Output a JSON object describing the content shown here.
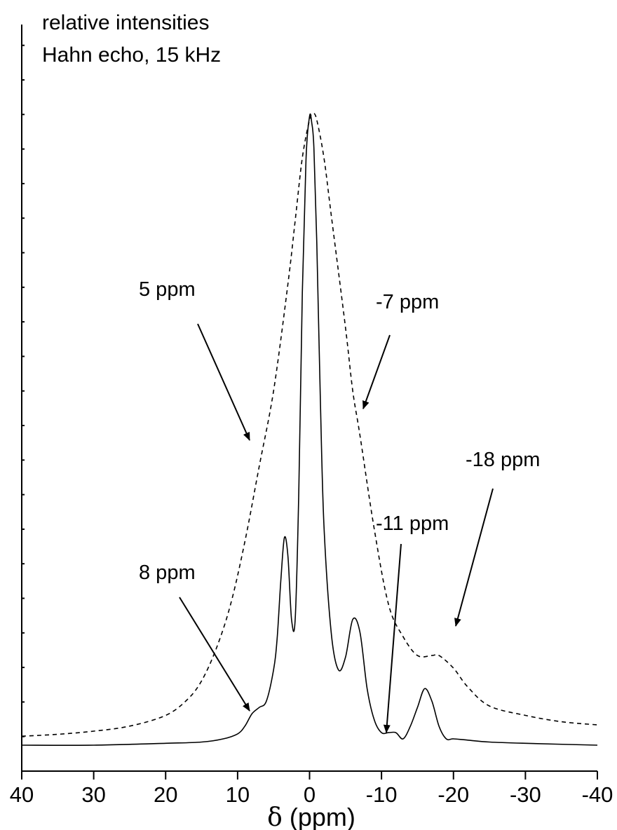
{
  "chart_data": {
    "type": "line",
    "title": "",
    "ylabel_lines": [
      "relative intensities",
      "Hahn echo, 15 kHz"
    ],
    "xlabel_symbol": "δ",
    "xlabel_unit": " (ppm)",
    "xlim": [
      40,
      -40
    ],
    "ylim": [
      0,
      1
    ],
    "x_reversed": true,
    "grid": false,
    "x_ticks": [
      40,
      30,
      20,
      10,
      0,
      -10,
      -20,
      -30,
      -40
    ],
    "x_tick_labels": [
      "40",
      "30",
      "20",
      "10",
      "0",
      "-10",
      "-20",
      "-30",
      "-40"
    ],
    "y_tick_labels": [],
    "series": [
      {
        "style": "dashed",
        "x": [
          40,
          35,
          30,
          25,
          20,
          17,
          15,
          13,
          11,
          9,
          7,
          5,
          3,
          2,
          1,
          0,
          -0.5,
          -1,
          -2,
          -3,
          -5,
          -6,
          -7,
          -9,
          -11,
          -13,
          -15,
          -17,
          -18,
          -20,
          -22,
          -25,
          -30,
          -35,
          -40
        ],
        "y": [
          0.012,
          0.015,
          0.02,
          0.028,
          0.045,
          0.07,
          0.1,
          0.15,
          0.22,
          0.32,
          0.44,
          0.56,
          0.73,
          0.83,
          0.93,
          0.99,
          1.0,
          0.99,
          0.93,
          0.84,
          0.66,
          0.56,
          0.49,
          0.34,
          0.22,
          0.17,
          0.14,
          0.14,
          0.14,
          0.12,
          0.09,
          0.06,
          0.045,
          0.035,
          0.03
        ]
      },
      {
        "style": "solid",
        "x": [
          40,
          30,
          20,
          15,
          12,
          10,
          9,
          8,
          7,
          6,
          5,
          4.5,
          4,
          3.5,
          3,
          2.5,
          2,
          1.5,
          1,
          0.5,
          0,
          -0.3,
          -0.6,
          -1,
          -1.5,
          -2,
          -3,
          -4,
          -5,
          -6,
          -7,
          -8,
          -9,
          -10,
          -11,
          -12,
          -13,
          -14,
          -15,
          -16,
          -17,
          -18,
          -19,
          -20,
          -22,
          -25,
          -30,
          -40
        ],
        "y": [
          0.0,
          0.0,
          0.003,
          0.005,
          0.01,
          0.018,
          0.03,
          0.05,
          0.06,
          0.07,
          0.12,
          0.17,
          0.26,
          0.33,
          0.3,
          0.2,
          0.2,
          0.4,
          0.72,
          0.93,
          1.0,
          0.99,
          0.95,
          0.8,
          0.55,
          0.35,
          0.18,
          0.12,
          0.14,
          0.2,
          0.18,
          0.09,
          0.04,
          0.02,
          0.02,
          0.02,
          0.01,
          0.03,
          0.06,
          0.09,
          0.07,
          0.03,
          0.01,
          0.01,
          0.008,
          0.005,
          0.003,
          0.0
        ]
      }
    ],
    "annotations": [
      {
        "label": "5 ppm",
        "points_to": 5
      },
      {
        "label": "-7 ppm",
        "points_to": -7
      },
      {
        "label": "8 ppm",
        "points_to": 8
      },
      {
        "label": "-11 ppm",
        "points_to": -11
      },
      {
        "label": "-18 ppm",
        "points_to": -18
      }
    ]
  }
}
